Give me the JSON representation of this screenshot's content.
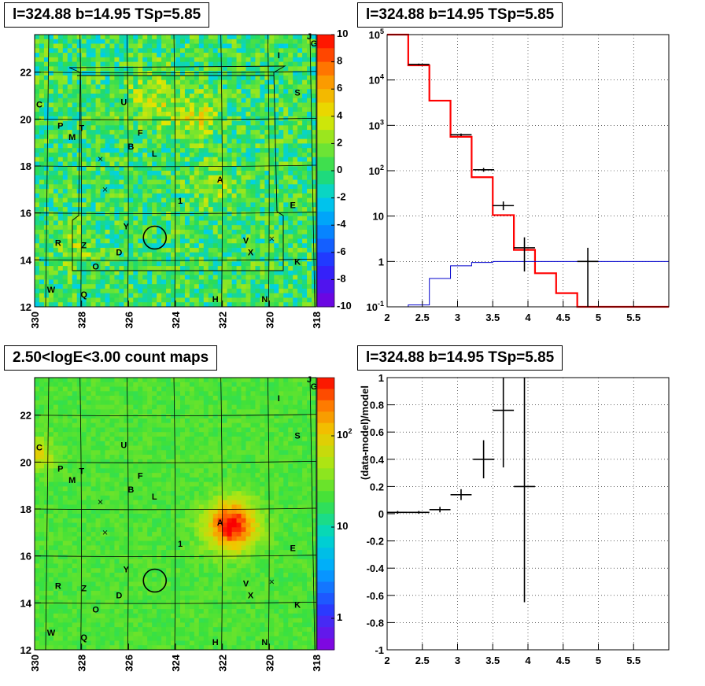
{
  "panels": {
    "top_left_title": "l=324.88 b=14.95 TSp=5.85",
    "top_right_title": "l=324.88 b=14.95 TSp=5.85",
    "bottom_left_title": "2.50<logE<3.00 count maps",
    "bottom_right_title": "l=324.88 b=14.95 TSp=5.85"
  },
  "chart_data": [
    {
      "type": "heatmap",
      "title": "l=324.88 b=14.95 TSp=5.85",
      "x_ticks": [
        "330",
        "328",
        "326",
        "324",
        "322",
        "320",
        "318"
      ],
      "y_ticks": [
        "12",
        "14",
        "16",
        "18",
        "20",
        "22"
      ],
      "xlim": [
        330,
        318
      ],
      "ylim": [
        12,
        23.6
      ],
      "colorbar_ticks": [
        "10",
        "8",
        "6",
        "4",
        "2",
        "0",
        "-2",
        "-4",
        "-6",
        "-8",
        "-10"
      ],
      "colorbar_range": [
        -10,
        10
      ],
      "source_labels": [
        {
          "text": "J",
          "l": 318.3,
          "b": 23.4
        },
        {
          "text": "G",
          "l": 318.1,
          "b": 23.1
        },
        {
          "text": "I",
          "l": 319.6,
          "b": 22.6
        },
        {
          "text": "S",
          "l": 318.8,
          "b": 21.0
        },
        {
          "text": "C",
          "l": 329.8,
          "b": 20.5
        },
        {
          "text": "U",
          "l": 326.2,
          "b": 20.6
        },
        {
          "text": "P",
          "l": 328.9,
          "b": 19.6
        },
        {
          "text": "T",
          "l": 328.0,
          "b": 19.5
        },
        {
          "text": "M",
          "l": 328.4,
          "b": 19.1
        },
        {
          "text": "F",
          "l": 325.5,
          "b": 19.3
        },
        {
          "text": "B",
          "l": 325.9,
          "b": 18.7
        },
        {
          "text": "L",
          "l": 324.9,
          "b": 18.4
        },
        {
          "text": "A",
          "l": 322.1,
          "b": 17.3
        },
        {
          "text": "1",
          "l": 323.8,
          "b": 16.4
        },
        {
          "text": "E",
          "l": 319.0,
          "b": 16.2
        },
        {
          "text": "Y",
          "l": 326.1,
          "b": 15.3
        },
        {
          "text": "R",
          "l": 329.0,
          "b": 14.6
        },
        {
          "text": "Z",
          "l": 327.9,
          "b": 14.5
        },
        {
          "text": "D",
          "l": 326.4,
          "b": 14.2
        },
        {
          "text": "V",
          "l": 321.0,
          "b": 14.7
        },
        {
          "text": "X",
          "l": 320.8,
          "b": 14.2
        },
        {
          "text": "O",
          "l": 327.4,
          "b": 13.6
        },
        {
          "text": "K",
          "l": 318.8,
          "b": 13.8
        },
        {
          "text": "W",
          "l": 329.3,
          "b": 12.6
        },
        {
          "text": "Q",
          "l": 327.9,
          "b": 12.4
        },
        {
          "text": "H",
          "l": 322.3,
          "b": 12.2
        },
        {
          "text": "N",
          "l": 320.2,
          "b": 12.2
        }
      ]
    },
    {
      "type": "line",
      "title": "l=324.88 b=14.95 TSp=5.85",
      "yscale": "log",
      "xlim": [
        2,
        6
      ],
      "ylim": [
        0.1,
        100000
      ],
      "x_ticks": [
        "2",
        "2.5",
        "3",
        "3.5",
        "4",
        "4.5",
        "5",
        "5.5"
      ],
      "y_ticks": [
        "10^-1",
        "1",
        "10",
        "10^2",
        "10^3",
        "10^4",
        "10^5"
      ],
      "grid": true,
      "series": [
        {
          "kind": "model-total",
          "color": "#ff0000",
          "edges": [
            2.0,
            2.3,
            2.6,
            2.9,
            3.2,
            3.5,
            3.8,
            4.1,
            4.4,
            4.7,
            5.0,
            6.0
          ],
          "values": [
            100000,
            21000,
            3500,
            560,
            72,
            10.5,
            1.8,
            0.55,
            0.2,
            0.1,
            0.1
          ]
        },
        {
          "kind": "model-source",
          "color": "#0000cc",
          "edges": [
            2.0,
            2.3,
            2.6,
            2.9,
            3.2,
            3.5,
            3.8,
            4.1,
            6.0
          ],
          "values": [
            0.09,
            0.11,
            0.42,
            0.8,
            0.95,
            1.0,
            1.0,
            1.0
          ]
        },
        {
          "kind": "data",
          "color": "#000000",
          "points": [
            {
              "x": 2.45,
              "y": 22000,
              "xerr": 0.15,
              "ylo": 21000,
              "yhi": 23000
            },
            {
              "x": 3.05,
              "y": 620,
              "xerr": 0.15,
              "ylo": 580,
              "yhi": 660
            },
            {
              "x": 3.37,
              "y": 105,
              "xerr": 0.15,
              "ylo": 95,
              "yhi": 115
            },
            {
              "x": 3.65,
              "y": 17,
              "xerr": 0.15,
              "ylo": 13.5,
              "yhi": 21
            },
            {
              "x": 3.95,
              "y": 2.0,
              "xerr": 0.15,
              "ylo": 0.6,
              "yhi": 3.4
            },
            {
              "x": 4.85,
              "y": 1.0,
              "xerr": 0.15,
              "ylo": 0.1,
              "yhi": 2.0
            }
          ]
        }
      ]
    },
    {
      "type": "heatmap",
      "title": "2.50<logE<3.00 count maps",
      "x_ticks": [
        "330",
        "328",
        "326",
        "324",
        "322",
        "320",
        "318"
      ],
      "y_ticks": [
        "12",
        "14",
        "16",
        "18",
        "20",
        "22"
      ],
      "xlim": [
        330,
        318
      ],
      "ylim": [
        12,
        23.6
      ],
      "colorbar_scale": "log",
      "colorbar_ticks": [
        "10^2",
        "10",
        "1"
      ],
      "hotspot": {
        "l": 321.6,
        "b": 17.3
      }
    },
    {
      "type": "scatter",
      "title": "l=324.88 b=14.95 TSp=5.85",
      "ylabel": "(data-model)/model",
      "xlim": [
        2,
        6
      ],
      "ylim": [
        -1,
        1
      ],
      "x_ticks": [
        "2",
        "2.5",
        "3",
        "3.5",
        "4",
        "4.5",
        "5",
        "5.5"
      ],
      "y_ticks": [
        "-1",
        "-0.8",
        "-0.6",
        "-0.4",
        "-0.2",
        "0",
        "0.2",
        "0.4",
        "0.6",
        "0.8",
        "1"
      ],
      "grid": true,
      "points": [
        {
          "x": 2.15,
          "y": 0.01,
          "xerr": 0.15,
          "ylo": 0.0,
          "yhi": 0.02
        },
        {
          "x": 2.45,
          "y": 0.01,
          "xerr": 0.15,
          "ylo": 0.0,
          "yhi": 0.02
        },
        {
          "x": 2.75,
          "y": 0.03,
          "xerr": 0.15,
          "ylo": 0.01,
          "yhi": 0.05
        },
        {
          "x": 3.05,
          "y": 0.14,
          "xerr": 0.15,
          "ylo": 0.1,
          "yhi": 0.18
        },
        {
          "x": 3.37,
          "y": 0.4,
          "xerr": 0.15,
          "ylo": 0.26,
          "yhi": 0.54
        },
        {
          "x": 3.65,
          "y": 0.76,
          "xerr": 0.15,
          "ylo": 0.34,
          "yhi": 1.0
        },
        {
          "x": 3.95,
          "y": 0.2,
          "xerr": 0.15,
          "ylo": -0.65,
          "yhi": 1.0
        }
      ]
    }
  ]
}
